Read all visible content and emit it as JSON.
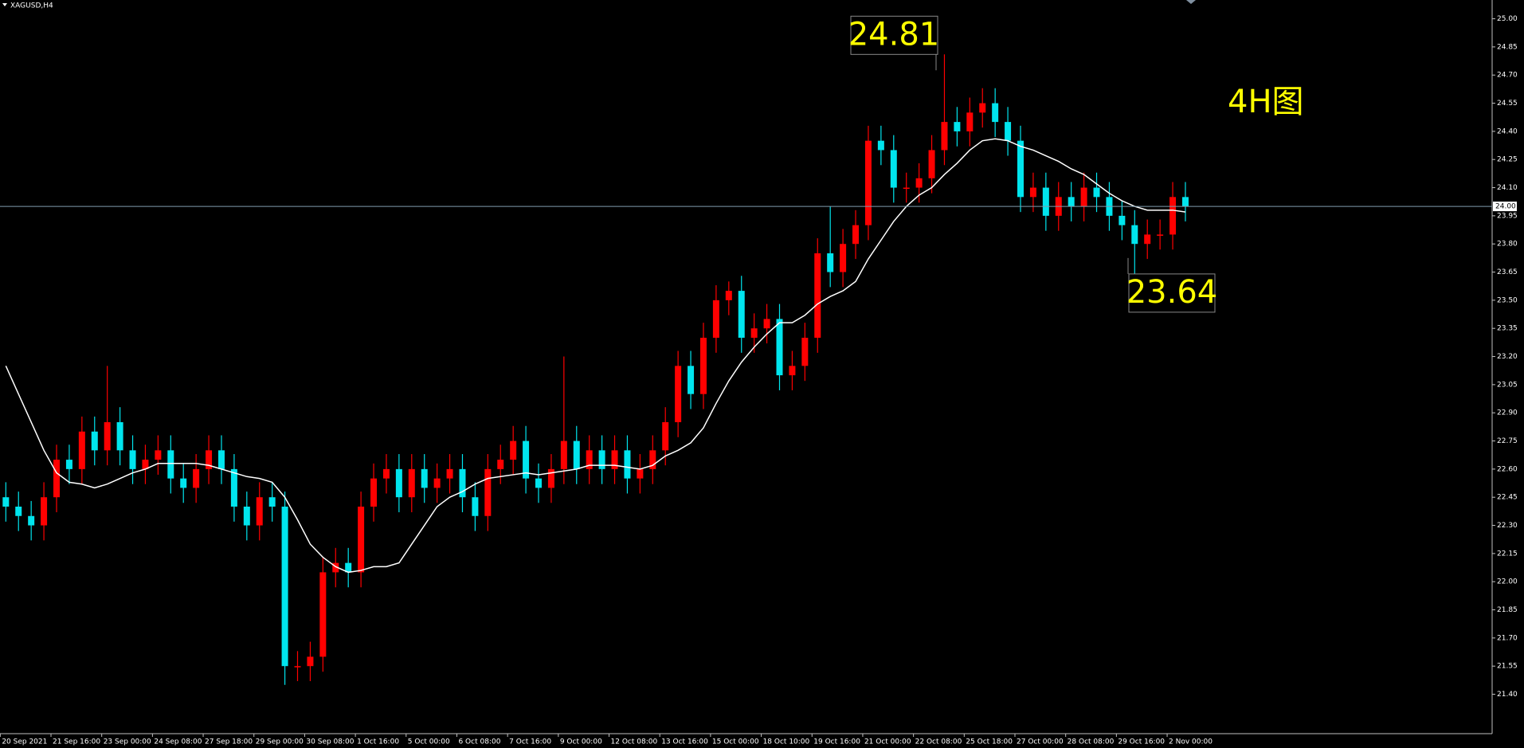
{
  "chart_data": {
    "type": "candlestick",
    "title": "XAGUSD,H4",
    "annotation": "4H图",
    "categories": [
      "20 Sep 2021",
      null,
      null,
      null,
      "21 Sep 16:00",
      null,
      null,
      null,
      "23 Sep 00:00",
      null,
      null,
      null,
      "24 Sep 08:00",
      null,
      null,
      null,
      "27 Sep 18:00",
      null,
      null,
      null,
      "29 Sep 00:00",
      null,
      null,
      null,
      "30 Sep 08:00",
      null,
      null,
      null,
      "1 Oct 16:00",
      null,
      null,
      null,
      "5 Oct 00:00",
      null,
      null,
      null,
      "6 Oct 08:00",
      null,
      null,
      null,
      "7 Oct 16:00",
      null,
      null,
      null,
      "9 Oct 00:00",
      null,
      null,
      null,
      "12 Oct 08:00",
      null,
      null,
      null,
      "13 Oct 16:00",
      null,
      null,
      null,
      "15 Oct 00:00",
      null,
      null,
      null,
      "18 Oct 10:00",
      null,
      null,
      null,
      "19 Oct 16:00",
      null,
      null,
      null,
      "21 Oct 00:00",
      null,
      null,
      null,
      "22 Oct 08:00",
      null,
      null,
      null,
      "25 Oct 18:00",
      null,
      null,
      null,
      "27 Oct 00:00",
      null,
      null,
      null,
      "28 Oct 08:00",
      null,
      null,
      null,
      "29 Oct 16:00",
      null,
      null,
      null,
      "2 Nov 00:00",
      null
    ],
    "open": [
      22.45,
      22.4,
      22.35,
      22.3,
      22.45,
      22.65,
      22.6,
      22.8,
      22.7,
      22.85,
      22.7,
      22.6,
      22.65,
      22.7,
      22.55,
      22.5,
      22.6,
      22.7,
      22.6,
      22.4,
      22.3,
      22.45,
      22.4,
      21.55,
      21.55,
      21.6,
      22.05,
      22.1,
      22.05,
      22.4,
      22.55,
      22.6,
      22.45,
      22.6,
      22.5,
      22.55,
      22.6,
      22.45,
      22.35,
      22.6,
      22.65,
      22.75,
      22.55,
      22.5,
      22.6,
      22.75,
      22.6,
      22.7,
      22.6,
      22.7,
      22.55,
      22.6,
      22.7,
      22.85,
      23.15,
      23.0,
      23.3,
      23.5,
      23.55,
      23.3,
      23.35,
      23.4,
      23.1,
      23.15,
      23.3,
      23.75,
      23.65,
      23.8,
      23.9,
      24.35,
      24.3,
      24.1,
      24.1,
      24.15,
      24.3,
      24.45,
      24.4,
      24.5,
      24.55,
      24.45,
      24.35,
      24.05,
      24.1,
      23.95,
      24.05,
      24.0,
      24.1,
      24.05,
      23.95,
      23.9,
      23.8,
      23.85,
      23.85,
      24.05
    ],
    "high": [
      22.53,
      22.48,
      22.43,
      22.53,
      22.73,
      22.73,
      22.88,
      22.88,
      23.15,
      22.93,
      22.78,
      22.73,
      22.78,
      22.78,
      22.63,
      22.68,
      22.78,
      22.78,
      22.68,
      22.48,
      22.53,
      22.53,
      22.48,
      21.63,
      21.68,
      22.13,
      22.18,
      22.18,
      22.48,
      22.63,
      22.68,
      22.68,
      22.68,
      22.68,
      22.63,
      22.68,
      22.68,
      22.53,
      22.68,
      22.73,
      22.83,
      22.83,
      22.63,
      22.68,
      23.2,
      22.83,
      22.78,
      22.78,
      22.78,
      22.78,
      22.68,
      22.78,
      22.93,
      23.23,
      23.23,
      23.38,
      23.58,
      23.6,
      23.63,
      23.43,
      23.48,
      23.48,
      23.23,
      23.38,
      23.83,
      24.0,
      23.88,
      23.98,
      24.43,
      24.43,
      24.38,
      24.18,
      24.23,
      24.38,
      24.81,
      24.53,
      24.58,
      24.63,
      24.63,
      24.53,
      24.43,
      24.18,
      24.18,
      24.13,
      24.13,
      24.18,
      24.18,
      24.13,
      24.03,
      23.98,
      23.93,
      23.93,
      24.13,
      24.13
    ],
    "low": [
      22.32,
      22.27,
      22.22,
      22.22,
      22.37,
      22.52,
      22.52,
      22.62,
      22.62,
      22.62,
      22.52,
      22.52,
      22.57,
      22.47,
      22.42,
      22.42,
      22.52,
      22.52,
      22.32,
      22.22,
      22.22,
      22.32,
      21.45,
      21.47,
      21.47,
      21.52,
      21.97,
      21.97,
      21.97,
      22.32,
      22.47,
      22.37,
      22.37,
      22.42,
      22.42,
      22.47,
      22.37,
      22.27,
      22.27,
      22.52,
      22.57,
      22.47,
      22.42,
      22.42,
      22.52,
      22.52,
      22.52,
      22.52,
      22.52,
      22.47,
      22.47,
      22.52,
      22.62,
      22.77,
      22.92,
      22.92,
      23.22,
      23.42,
      23.22,
      23.22,
      23.27,
      23.02,
      23.02,
      23.07,
      23.22,
      23.57,
      23.57,
      23.72,
      23.82,
      24.22,
      24.02,
      24.02,
      24.02,
      24.07,
      24.22,
      24.32,
      24.32,
      24.42,
      24.37,
      24.27,
      23.97,
      23.97,
      23.87,
      23.87,
      23.92,
      23.92,
      23.97,
      23.87,
      23.82,
      23.64,
      23.72,
      23.77,
      23.77,
      23.92
    ],
    "close": [
      22.4,
      22.35,
      22.3,
      22.45,
      22.65,
      22.6,
      22.8,
      22.7,
      22.85,
      22.7,
      22.6,
      22.65,
      22.7,
      22.55,
      22.5,
      22.6,
      22.7,
      22.6,
      22.4,
      22.3,
      22.45,
      22.4,
      21.55,
      21.55,
      21.6,
      22.05,
      22.1,
      22.05,
      22.4,
      22.55,
      22.6,
      22.45,
      22.6,
      22.5,
      22.55,
      22.6,
      22.45,
      22.35,
      22.6,
      22.65,
      22.75,
      22.55,
      22.5,
      22.6,
      22.75,
      22.6,
      22.7,
      22.6,
      22.7,
      22.55,
      22.6,
      22.7,
      22.85,
      23.15,
      23.0,
      23.3,
      23.5,
      23.55,
      23.3,
      23.35,
      23.4,
      23.1,
      23.15,
      23.3,
      23.75,
      23.65,
      23.8,
      23.9,
      24.35,
      24.3,
      24.1,
      24.1,
      24.15,
      24.3,
      24.45,
      24.4,
      24.5,
      24.55,
      24.45,
      24.35,
      24.05,
      24.1,
      23.95,
      24.05,
      24.0,
      24.1,
      24.05,
      23.95,
      23.9,
      23.8,
      23.85,
      23.85,
      24.05,
      24.0
    ],
    "bull_color": "#ff0000",
    "bear_color": "#00e5ee",
    "ma": {
      "color": "#ffffff",
      "values": [
        23.15,
        23.0,
        22.85,
        22.7,
        22.58,
        22.53,
        22.52,
        22.5,
        22.52,
        22.55,
        22.58,
        22.6,
        22.63,
        22.63,
        22.63,
        22.63,
        22.62,
        22.6,
        22.58,
        22.56,
        22.55,
        22.53,
        22.45,
        22.33,
        22.2,
        22.13,
        22.08,
        22.05,
        22.06,
        22.08,
        22.08,
        22.1,
        22.2,
        22.3,
        22.4,
        22.45,
        22.48,
        22.52,
        22.55,
        22.56,
        22.57,
        22.58,
        22.57,
        22.58,
        22.59,
        22.6,
        22.62,
        22.62,
        22.62,
        22.61,
        22.6,
        22.62,
        22.67,
        22.7,
        22.74,
        22.82,
        22.95,
        23.07,
        23.17,
        23.25,
        23.32,
        23.38,
        23.38,
        23.42,
        23.48,
        23.52,
        23.55,
        23.6,
        23.72,
        23.82,
        23.92,
        24.0,
        24.06,
        24.1,
        24.17,
        24.23,
        24.3,
        24.35,
        24.36,
        24.35,
        24.32,
        24.3,
        24.27,
        24.24,
        24.2,
        24.17,
        24.12,
        24.07,
        24.03,
        24.0,
        23.98,
        23.98,
        23.98,
        23.97
      ]
    },
    "current_price": {
      "value": 24,
      "label": "24.00"
    },
    "price_line_color": "#7f9cae",
    "high_label": 24.81,
    "low_label": 23.64,
    "label_color": "#ffff00",
    "ylim": [
      21.19,
      25.1
    ],
    "yticks": [
      {
        "value": 21.4,
        "label": "21.40"
      },
      {
        "value": 21.55,
        "label": "21.55"
      },
      {
        "value": 21.7,
        "label": "21.70"
      },
      {
        "value": 21.85,
        "label": "21.85"
      },
      {
        "value": 22,
        "label": "22.00"
      },
      {
        "value": 22.15,
        "label": "22.15"
      },
      {
        "value": 22.3,
        "label": "22.30"
      },
      {
        "value": 22.45,
        "label": "22.45"
      },
      {
        "value": 22.6,
        "label": "22.60"
      },
      {
        "value": 22.75,
        "label": "22.75"
      },
      {
        "value": 22.9,
        "label": "22.90"
      },
      {
        "value": 23.05,
        "label": "23.05"
      },
      {
        "value": 23.2,
        "label": "23.20"
      },
      {
        "value": 23.35,
        "label": "23.35"
      },
      {
        "value": 23.5,
        "label": "23.50"
      },
      {
        "value": 23.65,
        "label": "23.65"
      },
      {
        "value": 23.8,
        "label": "23.80"
      },
      {
        "value": 23.95,
        "label": "23.95"
      },
      {
        "value": 24.1,
        "label": "24.10"
      },
      {
        "value": 24.25,
        "label": "24.25"
      },
      {
        "value": 24.4,
        "label": "24.40"
      },
      {
        "value": 24.55,
        "label": "24.55"
      },
      {
        "value": 24.7,
        "label": "24.70"
      },
      {
        "value": 24.85,
        "label": "24.85"
      },
      {
        "value": 25,
        "label": "25.00"
      }
    ]
  }
}
